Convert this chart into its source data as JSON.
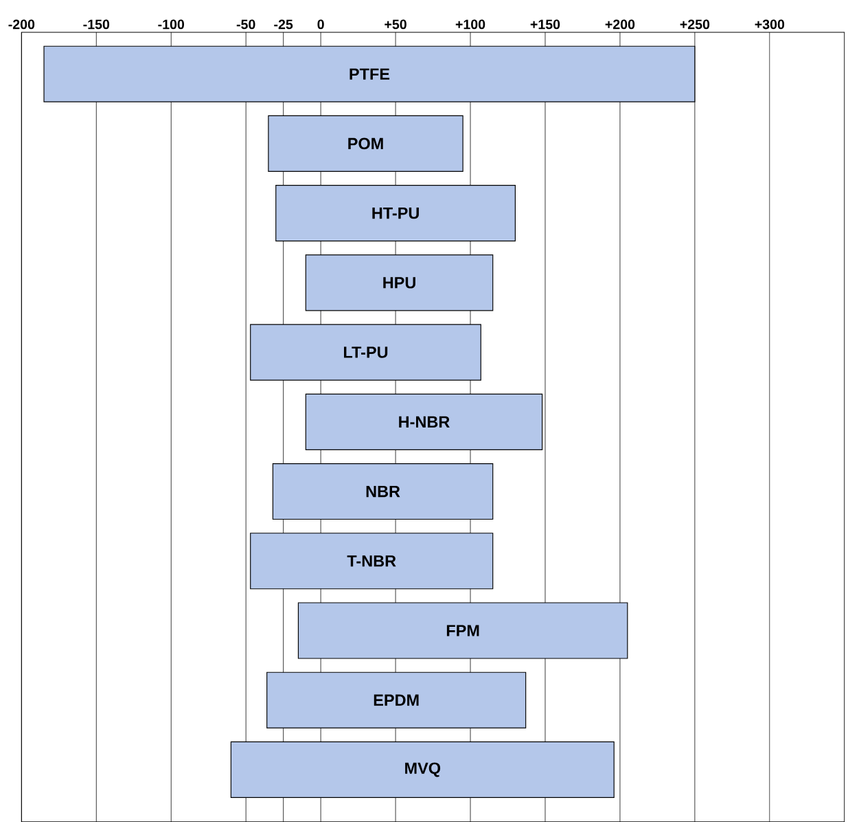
{
  "chart_data": {
    "type": "bar",
    "orientation": "horizontal",
    "categories": [
      "PTFE",
      "POM",
      "HT-PU",
      "HPU",
      "LT-PU",
      "H-NBR",
      "NBR",
      "T-NBR",
      "FPM",
      "EPDM",
      "MVQ"
    ],
    "base": [
      -185,
      -35,
      -30,
      -10,
      -47,
      -10,
      -32,
      -47,
      -15,
      -36,
      -60
    ],
    "values": [
      435,
      130,
      160,
      125,
      154,
      158,
      147,
      162,
      220,
      173,
      256
    ],
    "color": "#b4c7ea",
    "xlim": [
      -200,
      350
    ],
    "xticks": [
      -200,
      -150,
      -100,
      -50,
      -25,
      0,
      {
        "value": 50,
        "label": "+50"
      },
      {
        "value": 100,
        "label": "+100"
      },
      {
        "value": 150,
        "label": "+150"
      },
      {
        "value": 200,
        "label": "+200"
      },
      {
        "value": 250,
        "label": "+250"
      },
      {
        "value": 300,
        "label": "+300"
      }
    ],
    "grid": "x"
  }
}
